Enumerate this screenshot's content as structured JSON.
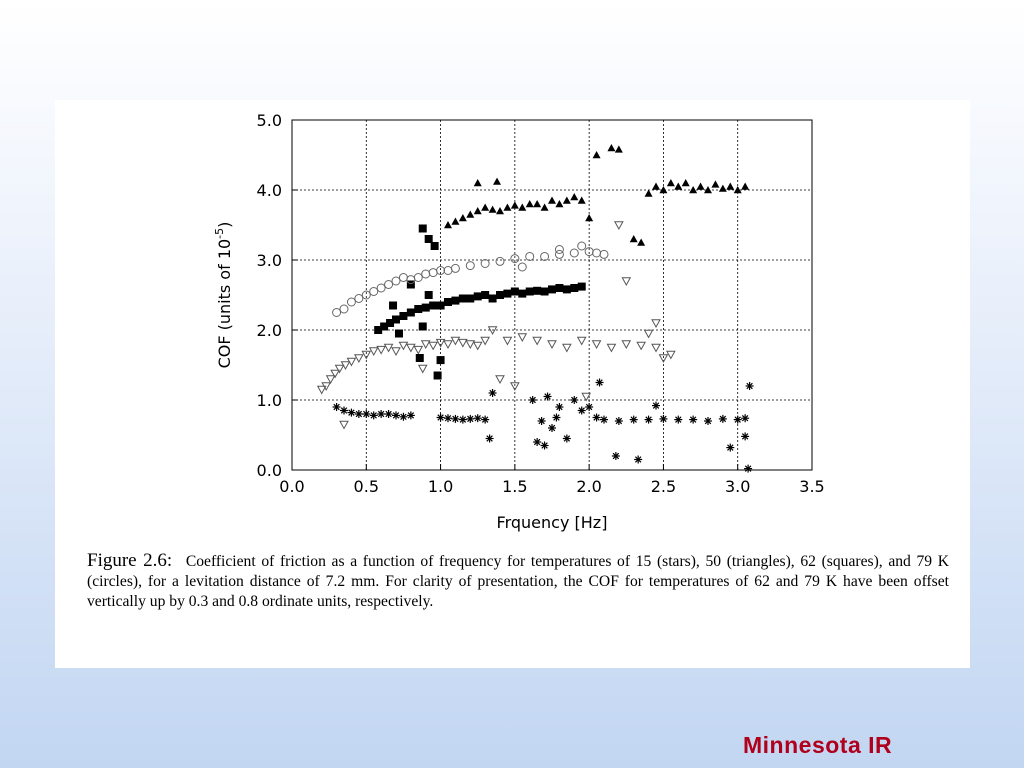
{
  "chart_data": {
    "type": "scatter",
    "y_label_parts": [
      "COF (units of 10",
      "-5",
      ")"
    ],
    "x_label": "Frquency [Hz]",
    "xlim": [
      0,
      3.5
    ],
    "xticks": [
      {
        "value": 0,
        "label": "0.0"
      },
      {
        "value": 0.5,
        "label": "0.5"
      },
      {
        "value": 1,
        "label": "1.0"
      },
      {
        "value": 1.5,
        "label": "1.5"
      },
      {
        "value": 2,
        "label": "2.0"
      },
      {
        "value": 2.5,
        "label": "2.5"
      },
      {
        "value": 3,
        "label": "3.0"
      },
      {
        "value": 3.5,
        "label": "3.5"
      }
    ],
    "ylim": [
      0,
      5
    ],
    "yticks": [
      {
        "value": 0,
        "label": "0.0"
      },
      {
        "value": 1,
        "label": "1.0"
      },
      {
        "value": 2,
        "label": "2.0"
      },
      {
        "value": 3,
        "label": "3.0"
      },
      {
        "value": 4,
        "label": "4.0"
      },
      {
        "value": 5,
        "label": "5.0"
      }
    ],
    "grid": true,
    "series": [
      {
        "marker": "star",
        "color": "#000000",
        "x": [
          0.3,
          0.35,
          0.4,
          0.45,
          0.5,
          0.55,
          0.6,
          0.65,
          0.7,
          0.75,
          0.8,
          1.0,
          1.05,
          1.1,
          1.15,
          1.2,
          1.25,
          1.3,
          1.33,
          1.35,
          1.62,
          1.65,
          1.68,
          1.7,
          1.72,
          1.75,
          1.78,
          1.8,
          1.85,
          1.9,
          1.95,
          2.0,
          2.05,
          2.1,
          2.2,
          2.3,
          2.4,
          2.5,
          2.6,
          2.7,
          2.8,
          2.9,
          3.0,
          3.05,
          2.07,
          2.18,
          2.33,
          2.45,
          2.95,
          3.08,
          3.07,
          3.05
        ],
        "values": [
          0.9,
          0.85,
          0.82,
          0.8,
          0.8,
          0.78,
          0.8,
          0.8,
          0.78,
          0.76,
          0.78,
          0.75,
          0.74,
          0.73,
          0.72,
          0.73,
          0.74,
          0.72,
          0.45,
          1.1,
          1.0,
          0.4,
          0.7,
          0.35,
          1.05,
          0.6,
          0.75,
          0.9,
          0.45,
          1.0,
          0.85,
          0.9,
          0.75,
          0.72,
          0.7,
          0.72,
          0.72,
          0.73,
          0.72,
          0.72,
          0.7,
          0.73,
          0.72,
          0.74,
          1.25,
          0.2,
          0.15,
          0.92,
          0.32,
          1.2,
          0.02,
          0.48
        ]
      },
      {
        "marker": "triangle-open",
        "color": "#555555",
        "x": [
          0.2,
          0.23,
          0.26,
          0.29,
          0.32,
          0.36,
          0.4,
          0.45,
          0.5,
          0.55,
          0.6,
          0.65,
          0.7,
          0.75,
          0.8,
          0.85,
          0.9,
          0.95,
          1.0,
          1.05,
          1.1,
          1.15,
          1.2,
          1.25,
          1.3,
          1.35,
          1.45,
          1.55,
          1.65,
          1.75,
          1.85,
          1.95,
          2.05,
          2.15,
          2.25,
          2.35,
          2.45,
          2.5,
          0.88,
          1.4,
          1.5,
          1.98,
          2.2,
          2.25,
          2.4,
          2.45,
          2.55,
          0.35
        ],
        "values": [
          1.15,
          1.2,
          1.3,
          1.38,
          1.45,
          1.5,
          1.55,
          1.6,
          1.65,
          1.7,
          1.72,
          1.75,
          1.7,
          1.78,
          1.75,
          1.72,
          1.8,
          1.78,
          1.82,
          1.8,
          1.85,
          1.82,
          1.8,
          1.78,
          1.85,
          2.0,
          1.85,
          1.9,
          1.85,
          1.8,
          1.75,
          1.85,
          1.8,
          1.75,
          1.8,
          1.78,
          1.75,
          1.6,
          1.45,
          1.3,
          1.2,
          1.05,
          3.5,
          2.7,
          1.95,
          2.1,
          1.65,
          0.65
        ]
      },
      {
        "marker": "square",
        "color": "#000000",
        "x": [
          0.58,
          0.62,
          0.66,
          0.7,
          0.75,
          0.8,
          0.85,
          0.9,
          0.95,
          1.0,
          1.05,
          1.1,
          1.15,
          1.2,
          1.25,
          1.3,
          1.35,
          1.4,
          1.45,
          1.5,
          1.55,
          1.6,
          1.65,
          1.7,
          1.75,
          1.8,
          1.85,
          1.9,
          1.95,
          0.88,
          0.92,
          0.96,
          0.8,
          0.88,
          0.92,
          0.98,
          1.0,
          0.72,
          0.68,
          0.86
        ],
        "values": [
          2.0,
          2.05,
          2.1,
          2.15,
          2.2,
          2.25,
          2.3,
          2.32,
          2.35,
          2.35,
          2.4,
          2.42,
          2.45,
          2.45,
          2.48,
          2.5,
          2.45,
          2.5,
          2.52,
          2.55,
          2.52,
          2.55,
          2.56,
          2.55,
          2.58,
          2.6,
          2.58,
          2.6,
          2.62,
          3.45,
          3.3,
          3.2,
          2.65,
          2.05,
          2.5,
          1.35,
          1.57,
          1.95,
          2.35,
          1.6
        ]
      },
      {
        "marker": "circle-open",
        "color": "#666666",
        "x": [
          0.3,
          0.35,
          0.4,
          0.45,
          0.5,
          0.55,
          0.6,
          0.65,
          0.7,
          0.75,
          0.8,
          0.85,
          0.9,
          0.95,
          1.0,
          1.05,
          1.1,
          1.2,
          1.3,
          1.4,
          1.5,
          1.6,
          1.7,
          1.8,
          1.9,
          2.0,
          2.05,
          2.1,
          1.95,
          1.8,
          1.55
        ],
        "values": [
          2.25,
          2.3,
          2.4,
          2.45,
          2.5,
          2.55,
          2.6,
          2.65,
          2.7,
          2.75,
          2.72,
          2.75,
          2.8,
          2.82,
          2.85,
          2.85,
          2.88,
          2.92,
          2.95,
          2.98,
          3.02,
          3.05,
          3.05,
          3.08,
          3.1,
          3.12,
          3.1,
          3.08,
          3.2,
          3.15,
          2.9
        ]
      },
      {
        "marker": "triangle",
        "color": "#000000",
        "x": [
          1.05,
          1.1,
          1.15,
          1.2,
          1.25,
          1.3,
          1.35,
          1.4,
          1.45,
          1.5,
          1.55,
          1.6,
          1.65,
          1.7,
          1.75,
          1.8,
          1.85,
          1.9,
          1.95,
          2.0,
          2.05,
          2.15,
          2.2,
          2.3,
          2.35,
          2.4,
          2.45,
          2.5,
          2.55,
          2.6,
          2.65,
          2.7,
          2.75,
          2.8,
          2.85,
          2.9,
          2.95,
          3.0,
          3.05,
          1.25,
          1.38
        ],
        "values": [
          3.5,
          3.55,
          3.6,
          3.65,
          3.7,
          3.75,
          3.72,
          3.7,
          3.75,
          3.78,
          3.75,
          3.8,
          3.8,
          3.75,
          3.85,
          3.8,
          3.85,
          3.9,
          3.85,
          3.6,
          4.5,
          4.6,
          4.58,
          3.3,
          3.25,
          3.95,
          4.05,
          4.0,
          4.1,
          4.05,
          4.1,
          4.0,
          4.05,
          4.0,
          4.08,
          4.02,
          4.05,
          4.0,
          4.05,
          4.1,
          4.12
        ]
      }
    ],
    "caption_label": "Figure 2.6:",
    "caption_text": "Coefficient of friction as a function of frequency for temperatures of 15 (stars), 50 (triangles), 62 (squares), and 79 K (circles), for a levitation distance of 7.2 mm. For clarity of presentation, the COF for temperatures of 62 and 79 K have been offset vertically up by 0.3 and 0.8 ordinate units, respectively.",
    "footer": "Minnesota IR"
  }
}
